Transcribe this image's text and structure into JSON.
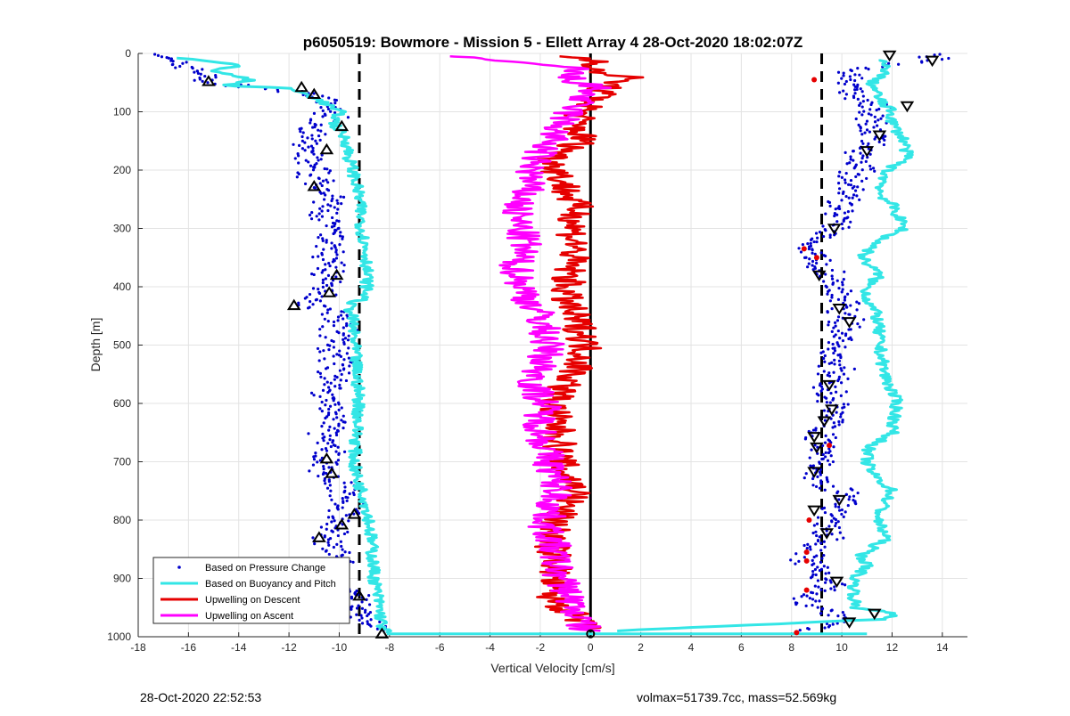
{
  "title": "p6050519: Bowmore - Mission 5 - Ellett Array 4 28-Oct-2020 18:02:07Z",
  "footer": {
    "timestamp": "28-Oct-2020 22:52:53",
    "mass_info": "volmax=51739.7cc, mass=52.569kg"
  },
  "chart_data": {
    "type": "line",
    "xlabel": "Vertical Velocity [cm/s]",
    "ylabel": "Depth [m]",
    "xlim": [
      -18,
      15
    ],
    "ylim": [
      0,
      1000
    ],
    "y_reversed": true,
    "grid": true,
    "x_ticks": [
      -18,
      -16,
      -14,
      -12,
      -10,
      -8,
      -6,
      -4,
      -2,
      0,
      2,
      4,
      6,
      8,
      10,
      12,
      14
    ],
    "y_ticks": [
      0,
      100,
      200,
      300,
      400,
      500,
      600,
      700,
      800,
      900,
      1000
    ],
    "reference_lines": [
      {
        "x": -9.2,
        "style": "dashed",
        "color": "#000000"
      },
      {
        "x": 9.2,
        "style": "dashed",
        "color": "#000000"
      },
      {
        "x": 0,
        "style": "solid",
        "color": "#000000"
      }
    ],
    "legend_position": "bottom-left",
    "series": [
      {
        "name": "Based on Pressure Change",
        "style": "dots",
        "color": "#0000cc",
        "descent": {
          "depth": [
            10,
            30,
            50,
            70,
            90,
            110,
            130,
            150,
            170,
            190,
            210,
            230,
            250,
            270,
            290,
            310,
            330,
            350,
            370,
            390,
            410,
            430,
            450,
            470,
            490,
            510,
            530,
            550,
            570,
            590,
            610,
            630,
            650,
            670,
            690,
            710,
            730,
            750,
            770,
            790,
            810,
            830,
            850,
            870,
            890,
            910,
            930,
            950,
            970,
            990
          ],
          "velocity": [
            -17.0,
            -15.5,
            -15.2,
            -11.0,
            -10.5,
            -10.3,
            -11.0,
            -11.4,
            -11.3,
            -11.2,
            -11.0,
            -10.6,
            -10.4,
            -10.6,
            -10.5,
            -10.4,
            -10.3,
            -10.5,
            -10.3,
            -10.6,
            -10.5,
            -11.0,
            -10.1,
            -10.0,
            -10.0,
            -10.3,
            -10.1,
            -10.2,
            -10.3,
            -10.5,
            -10.2,
            -10.3,
            -10.5,
            -10.6,
            -10.4,
            -10.6,
            -10.3,
            -9.8,
            -9.6,
            -9.9,
            -10.2,
            -10.5,
            -10.3,
            -10.0,
            -10.4,
            -10.2,
            -9.4,
            -9.3,
            -8.9,
            -8.4
          ]
        },
        "ascent": {
          "depth": [
            10,
            30,
            50,
            70,
            90,
            110,
            130,
            150,
            170,
            190,
            210,
            230,
            250,
            270,
            290,
            310,
            330,
            350,
            370,
            390,
            410,
            430,
            450,
            470,
            490,
            510,
            530,
            550,
            570,
            590,
            610,
            630,
            650,
            670,
            690,
            710,
            730,
            750,
            770,
            790,
            810,
            830,
            850,
            870,
            890,
            910,
            930,
            950,
            970,
            990
          ],
          "velocity": [
            13.5,
            10.3,
            10.2,
            10.5,
            11.2,
            11.3,
            11.0,
            11.4,
            10.8,
            10.9,
            10.5,
            10.3,
            10.1,
            9.9,
            9.7,
            9.4,
            8.7,
            9.0,
            9.3,
            9.6,
            9.8,
            10.0,
            10.2,
            10.1,
            9.9,
            9.8,
            9.7,
            9.8,
            9.5,
            9.6,
            9.8,
            9.6,
            9.3,
            9.2,
            9.3,
            9.1,
            9.1,
            10.0,
            10.0,
            9.7,
            9.3,
            9.4,
            8.6,
            8.6,
            9.2,
            9.7,
            8.6,
            8.8,
            10.4,
            8.5
          ]
        }
      },
      {
        "name": "Based on Buoyancy and Pitch",
        "style": "line",
        "color": "#33e6e6",
        "descent": {
          "depth": [
            8,
            20,
            30,
            45,
            55,
            60,
            75,
            100,
            120,
            150,
            180,
            210,
            250,
            300,
            350,
            400,
            420,
            430,
            450,
            500,
            550,
            600,
            650,
            700,
            730,
            760,
            800,
            850,
            900,
            950,
            980,
            995
          ],
          "velocity": [
            -16.3,
            -14.0,
            -15.0,
            -13.5,
            -14.5,
            -12.0,
            -11.0,
            -10.0,
            -10.2,
            -9.7,
            -9.6,
            -9.4,
            -9.2,
            -9.1,
            -8.9,
            -8.9,
            -9.0,
            -9.6,
            -9.5,
            -9.4,
            -9.3,
            -9.2,
            -9.3,
            -9.4,
            -9.3,
            -9.0,
            -8.8,
            -8.7,
            -8.6,
            -8.4,
            -8.3,
            -8.1
          ]
        },
        "ascent": {
          "depth": [
            990,
            970,
            960,
            950,
            900,
            880,
            860,
            830,
            800,
            780,
            750,
            720,
            700,
            680,
            650,
            600,
            550,
            500,
            450,
            420,
            400,
            380,
            350,
            320,
            300,
            260,
            240,
            200,
            180,
            150,
            120,
            100,
            80,
            50,
            30,
            10
          ],
          "velocity": [
            1.0,
            11.5,
            12.3,
            10.5,
            10.5,
            11.0,
            10.8,
            11.8,
            11.4,
            11.6,
            12.0,
            11.2,
            11.0,
            11.0,
            12.0,
            12.2,
            11.7,
            11.5,
            11.4,
            11.0,
            11.0,
            11.5,
            10.8,
            11.5,
            12.5,
            12.0,
            11.5,
            11.8,
            12.6,
            12.5,
            12.0,
            12.0,
            11.5,
            11.2,
            11.8,
            11.5
          ]
        }
      },
      {
        "name": "Upwelling on Descent",
        "style": "line",
        "color": "#e60000",
        "depth": [
          5,
          15,
          25,
          40,
          60,
          80,
          100,
          120,
          150,
          180,
          210,
          240,
          270,
          300,
          330,
          360,
          390,
          420,
          450,
          480,
          510,
          540,
          570,
          600,
          630,
          660,
          690,
          720,
          750,
          780,
          810,
          840,
          870,
          900,
          930,
          960,
          990
        ],
        "velocity": [
          -1.0,
          0.8,
          -0.5,
          1.5,
          0.5,
          0.2,
          -0.3,
          -0.6,
          -0.3,
          -1.5,
          -1.2,
          -0.9,
          -0.5,
          -0.7,
          -0.6,
          -0.8,
          -0.9,
          -1.0,
          -0.7,
          -0.3,
          -0.2,
          -0.5,
          -1.0,
          -1.5,
          -1.4,
          -1.2,
          -1.3,
          -1.0,
          -0.5,
          -1.1,
          -1.4,
          -1.6,
          -1.3,
          -1.5,
          -1.6,
          -0.8,
          -0.1
        ]
      },
      {
        "name": "Upwelling on Ascent",
        "style": "line",
        "color": "#ff00ff",
        "depth": [
          990,
          960,
          930,
          900,
          870,
          840,
          810,
          780,
          750,
          720,
          690,
          660,
          630,
          600,
          570,
          540,
          510,
          480,
          450,
          420,
          390,
          360,
          330,
          300,
          270,
          240,
          210,
          180,
          150,
          120,
          100,
          80,
          60,
          40,
          25,
          15,
          5
        ],
        "velocity": [
          -0.2,
          -0.6,
          -0.8,
          -1.2,
          -1.4,
          -1.5,
          -1.8,
          -1.6,
          -1.3,
          -1.5,
          -1.7,
          -1.9,
          -2.0,
          -1.8,
          -2.3,
          -2.0,
          -1.7,
          -1.8,
          -2.0,
          -2.5,
          -2.8,
          -3.0,
          -2.6,
          -2.8,
          -3.0,
          -2.6,
          -2.4,
          -2.2,
          -1.6,
          -1.2,
          -0.8,
          -0.5,
          0.2,
          -1.0,
          -0.5,
          -3.5,
          -5.0
        ]
      }
    ],
    "markers": {
      "descent_triangles": [
        {
          "x": -15.2,
          "y": 48
        },
        {
          "x": -11.5,
          "y": 58
        },
        {
          "x": -11.0,
          "y": 70
        },
        {
          "x": -9.9,
          "y": 125
        },
        {
          "x": -10.5,
          "y": 165
        },
        {
          "x": -11.0,
          "y": 228
        },
        {
          "x": -10.1,
          "y": 380
        },
        {
          "x": -10.4,
          "y": 410
        },
        {
          "x": -11.8,
          "y": 432
        },
        {
          "x": -10.5,
          "y": 695
        },
        {
          "x": -10.3,
          "y": 720
        },
        {
          "x": -9.4,
          "y": 790
        },
        {
          "x": -9.9,
          "y": 808
        },
        {
          "x": -10.8,
          "y": 830
        },
        {
          "x": -9.2,
          "y": 930
        },
        {
          "x": -8.3,
          "y": 995
        }
      ],
      "ascent_triangles": [
        {
          "x": 11.9,
          "y": 3
        },
        {
          "x": 13.6,
          "y": 12
        },
        {
          "x": 12.6,
          "y": 90
        },
        {
          "x": 11.5,
          "y": 140
        },
        {
          "x": 11.0,
          "y": 167
        },
        {
          "x": 9.7,
          "y": 300
        },
        {
          "x": 9.1,
          "y": 380
        },
        {
          "x": 9.9,
          "y": 437
        },
        {
          "x": 10.3,
          "y": 460
        },
        {
          "x": 9.5,
          "y": 568
        },
        {
          "x": 9.6,
          "y": 610
        },
        {
          "x": 9.3,
          "y": 630
        },
        {
          "x": 8.9,
          "y": 657
        },
        {
          "x": 9.0,
          "y": 675
        },
        {
          "x": 8.9,
          "y": 717
        },
        {
          "x": 9.9,
          "y": 765
        },
        {
          "x": 8.9,
          "y": 783
        },
        {
          "x": 9.4,
          "y": 822
        },
        {
          "x": 9.8,
          "y": 905
        },
        {
          "x": 11.3,
          "y": 960
        },
        {
          "x": 10.3,
          "y": 975
        }
      ],
      "red_points": [
        {
          "x": 8.9,
          "y": 45
        },
        {
          "x": 8.5,
          "y": 335
        },
        {
          "x": 9.0,
          "y": 350
        },
        {
          "x": 9.5,
          "y": 672
        },
        {
          "x": 8.7,
          "y": 800
        },
        {
          "x": 8.6,
          "y": 855
        },
        {
          "x": 8.6,
          "y": 870
        },
        {
          "x": 8.6,
          "y": 920
        },
        {
          "x": 8.2,
          "y": 993
        }
      ]
    }
  }
}
